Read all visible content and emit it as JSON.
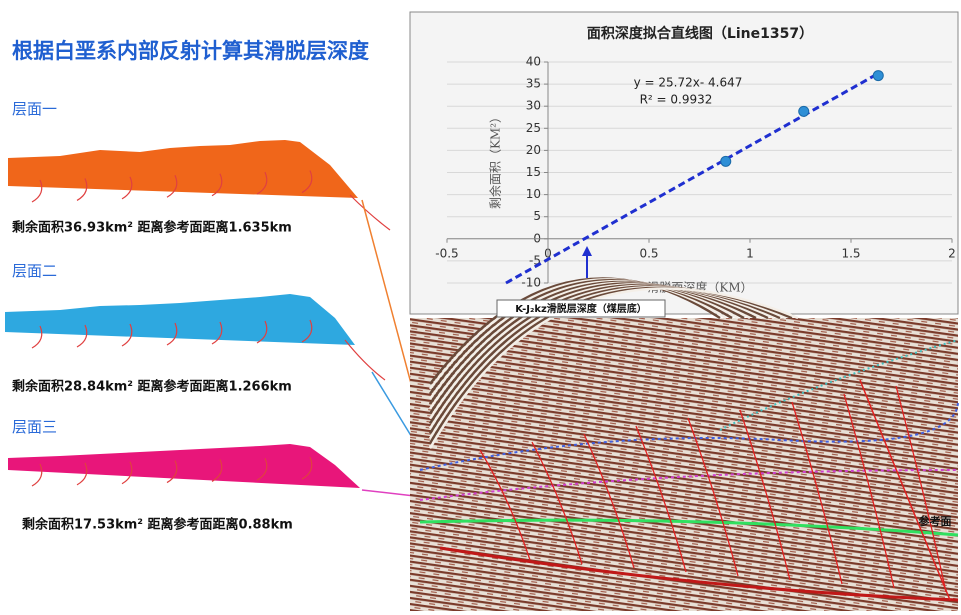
{
  "title": "根据白垩系内部反射计算其滑脱层深度",
  "layers": [
    {
      "label": "层面一",
      "text": "剩余面积36.93km²  距离参考面距离1.635km"
    },
    {
      "label": "层面二",
      "text": "剩余面积28.84km²  距离参考面距离1.266km"
    },
    {
      "label": "层面三",
      "text": "剩余面积17.53km²  距离参考面距离0.88km"
    }
  ],
  "chart_data": {
    "type": "scatter",
    "title": "面积深度拟合直线图（Line1357）",
    "x_label": "滑脱面深度（KM）",
    "y_label": "剩余面积（KM²）",
    "x": [
      0.88,
      1.266,
      1.635
    ],
    "values": [
      17.53,
      28.84,
      36.93
    ],
    "color": "#2e8fd6",
    "trendline": {
      "slope": 25.72,
      "intercept": -4.647,
      "color": "#1f2fd0",
      "label": "y = 25.72x- 4.647",
      "r2_label": "R² = 0.9932"
    },
    "xlim": [
      -0.5,
      2
    ],
    "xticks": [
      -0.5,
      0,
      0.5,
      1,
      1.5,
      2
    ],
    "ylim": [
      -10,
      40
    ],
    "yticks": [
      -10,
      -5,
      0,
      5,
      10,
      15,
      20,
      25,
      30,
      35,
      40
    ],
    "grid": true
  },
  "caption": "K-J₂kz滑脱层深度（煤层底）",
  "section_label": "参考面"
}
